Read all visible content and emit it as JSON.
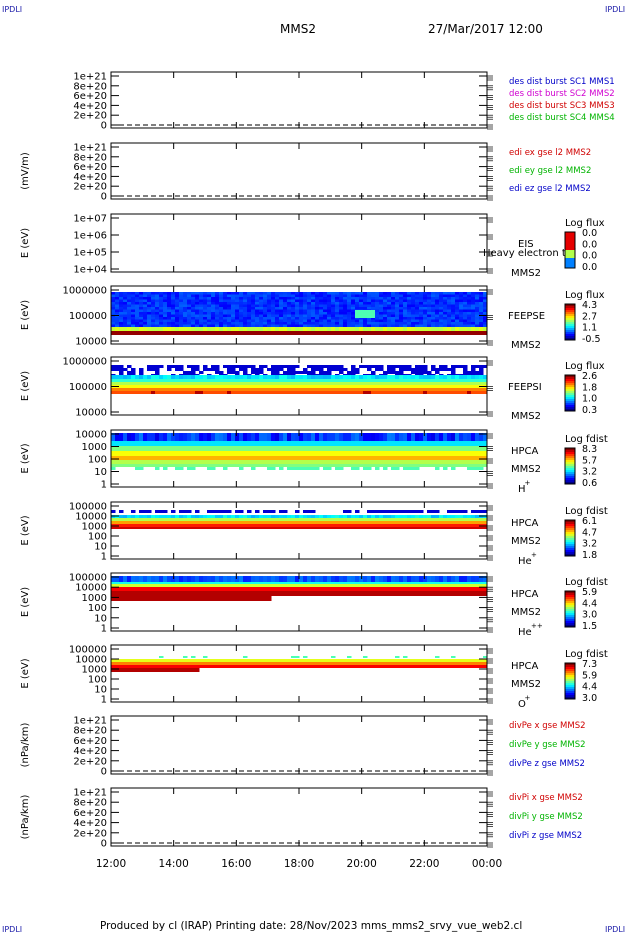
{
  "corner_label": "IPDLI",
  "header": {
    "spacecraft": "MMS2",
    "datetime": "27/Mar/2017 12:00"
  },
  "footer": {
    "text": "Produced by cl (IRAP)   Printing date: 28/Nov/2023   mms_mms2_srvy_vue_web2.cl"
  },
  "chart_data": [
    {
      "type": "line",
      "panel": "des-dist",
      "ylabel": "",
      "yticks": [
        "1e+21",
        "8e+20",
        "6e+20",
        "4e+20",
        "2e+20",
        "0"
      ],
      "series": [
        {
          "name": "des dist burst SC1 MMS1",
          "color": "#0000c8"
        },
        {
          "name": "des dist burst SC2 MMS2",
          "color": "#d000d0"
        },
        {
          "name": "des dist burst SC3 MMS3",
          "color": "#d00000"
        },
        {
          "name": "des dist burst SC4 MMS4",
          "color": "#00b400"
        }
      ],
      "zero_line": "dashed",
      "values": "no data"
    },
    {
      "type": "line",
      "panel": "edi",
      "ylabel": "(mV/m)",
      "yticks": [
        "1e+21",
        "8e+20",
        "6e+20",
        "4e+20",
        "2e+20",
        "0"
      ],
      "series": [
        {
          "name": "edi ex gse l2 MMS2",
          "color": "#d00000"
        },
        {
          "name": "edi ey gse l2 MMS2",
          "color": "#00b400"
        },
        {
          "name": "edi ez gse l2 MMS2",
          "color": "#0000c8"
        }
      ],
      "zero_line": "dashed",
      "values": "no data"
    },
    {
      "type": "heatmap",
      "panel": "eis",
      "ylabel": "E (eV)",
      "yticks": [
        "1e+07",
        "1e+06",
        "1e+05",
        "1e+04"
      ],
      "scale": "log",
      "labels": [
        "EIS",
        "Heavy electron tof",
        "MMS2"
      ],
      "colorbar": {
        "title": "Log flux",
        "ticks": [
          "0.0",
          "0.0",
          "0.0",
          "0.0"
        ]
      },
      "values": "no data"
    },
    {
      "type": "heatmap",
      "panel": "feepse",
      "ylabel": "E (eV)",
      "yticks": [
        "1000000",
        "100000",
        "10000"
      ],
      "scale": "log",
      "labels": [
        "FEEPSE",
        "MMS2"
      ],
      "colorbar": {
        "title": "Log flux",
        "ticks": [
          "4.3",
          "2.7",
          "1.1",
          "-0.5"
        ]
      }
    },
    {
      "type": "heatmap",
      "panel": "feepsi",
      "ylabel": "E (eV)",
      "yticks": [
        "1000000",
        "100000",
        "10000"
      ],
      "scale": "log",
      "labels": [
        "FEEPSI",
        "MMS2"
      ],
      "colorbar": {
        "title": "Log flux",
        "ticks": [
          "2.6",
          "1.8",
          "1.0",
          "0.3"
        ]
      }
    },
    {
      "type": "heatmap",
      "panel": "hpca-h",
      "ylabel": "E (eV)",
      "yticks": [
        "10000",
        "1000",
        "100",
        "10",
        "1"
      ],
      "scale": "log",
      "labels": [
        "HPCA",
        "MMS2",
        "H",
        "+"
      ],
      "colorbar": {
        "title": "Log fdist",
        "ticks": [
          "8.3",
          "5.7",
          "3.2",
          "0.6"
        ]
      }
    },
    {
      "type": "heatmap",
      "panel": "hpca-he",
      "ylabel": "E (eV)",
      "yticks": [
        "100000",
        "10000",
        "1000",
        "100",
        "10",
        "1"
      ],
      "scale": "log",
      "labels": [
        "HPCA",
        "MMS2",
        "He",
        "+"
      ],
      "colorbar": {
        "title": "Log fdist",
        "ticks": [
          "6.1",
          "4.7",
          "3.2",
          "1.8"
        ]
      }
    },
    {
      "type": "heatmap",
      "panel": "hpca-he2",
      "ylabel": "E (eV)",
      "yticks": [
        "100000",
        "10000",
        "1000",
        "100",
        "10",
        "1"
      ],
      "scale": "log",
      "labels": [
        "HPCA",
        "MMS2",
        "He",
        "++"
      ],
      "colorbar": {
        "title": "Log fdist",
        "ticks": [
          "5.9",
          "4.4",
          "3.0",
          "1.5"
        ]
      }
    },
    {
      "type": "heatmap",
      "panel": "hpca-o",
      "ylabel": "E (eV)",
      "yticks": [
        "100000",
        "10000",
        "1000",
        "100",
        "10",
        "1"
      ],
      "scale": "log",
      "labels": [
        "HPCA",
        "MMS2",
        "O",
        "+"
      ],
      "colorbar": {
        "title": "Log fdist",
        "ticks": [
          "7.3",
          "5.9",
          "4.4",
          "3.0"
        ]
      }
    },
    {
      "type": "line",
      "panel": "divpe",
      "ylabel": "(nPa/km)",
      "yticks": [
        "1e+21",
        "8e+20",
        "6e+20",
        "4e+20",
        "2e+20",
        "0"
      ],
      "series": [
        {
          "name": "divPe x gse MMS2",
          "color": "#d00000"
        },
        {
          "name": "divPe y gse MMS2",
          "color": "#00b400"
        },
        {
          "name": "divPe z gse MMS2",
          "color": "#0000c8"
        }
      ],
      "zero_line": "dashed",
      "values": "no data"
    },
    {
      "type": "line",
      "panel": "divpi",
      "ylabel": "(nPa/km)",
      "yticks": [
        "1e+21",
        "8e+20",
        "6e+20",
        "4e+20",
        "2e+20",
        "0"
      ],
      "series": [
        {
          "name": "divPi x gse MMS2",
          "color": "#d00000"
        },
        {
          "name": "divPi y gse MMS2",
          "color": "#00b400"
        },
        {
          "name": "divPi z gse MMS2",
          "color": "#0000c8"
        }
      ],
      "zero_line": "dashed",
      "values": "no data"
    }
  ],
  "x_axis": {
    "ticks": [
      "12:00",
      "14:00",
      "16:00",
      "18:00",
      "20:00",
      "22:00",
      "00:00"
    ]
  }
}
